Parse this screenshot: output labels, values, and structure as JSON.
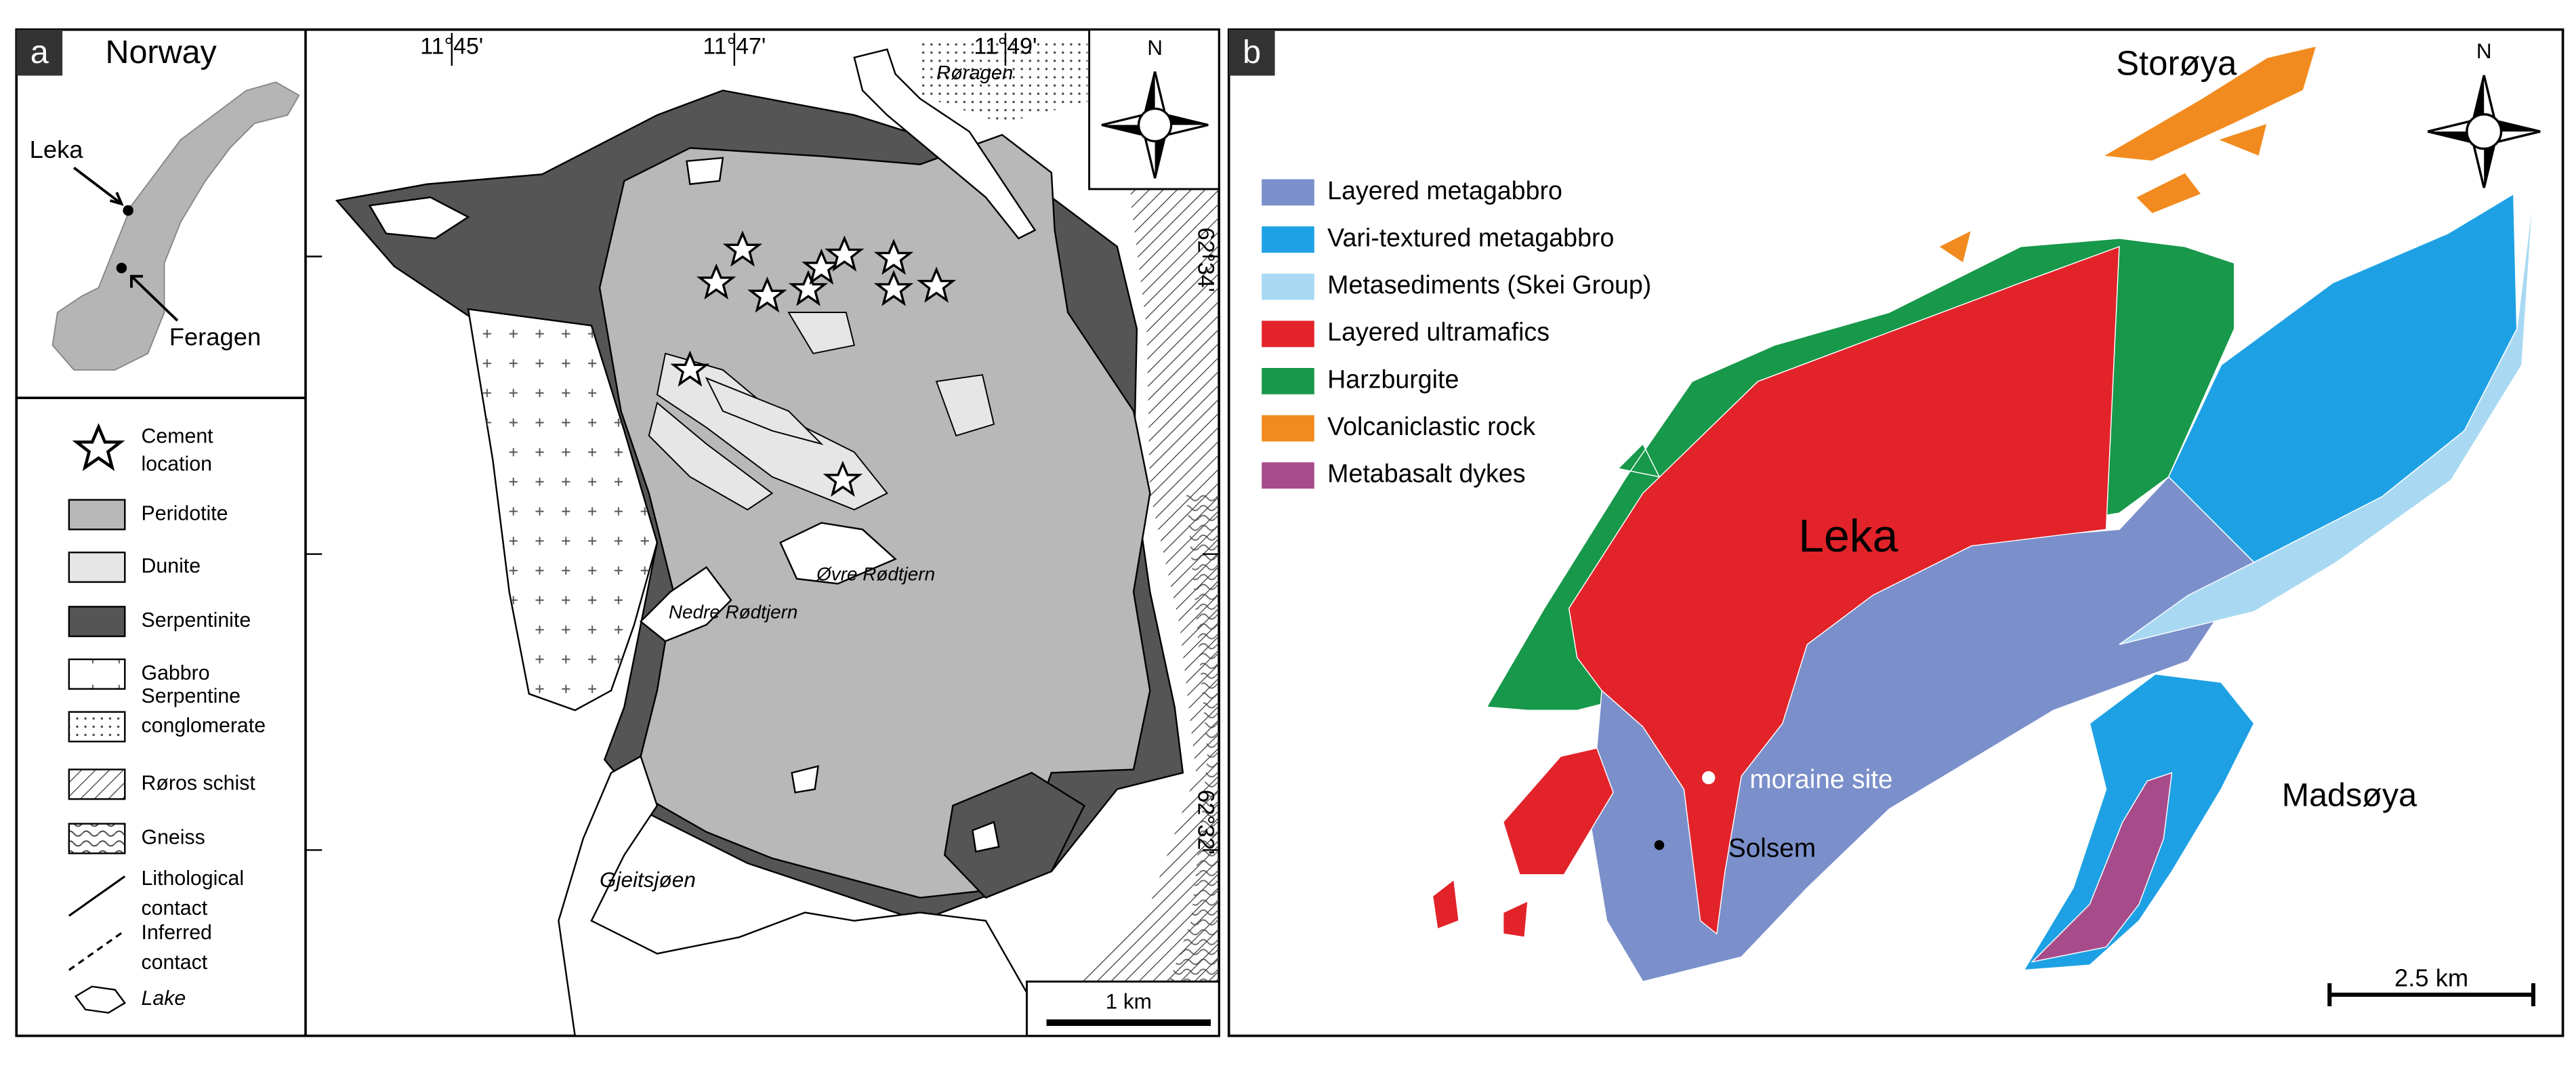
{
  "panel_a": {
    "label": "a",
    "inset": {
      "title": "Norway",
      "places": [
        "Leka",
        "Feragen"
      ]
    },
    "longitudes": [
      "11°45'",
      "11°47'",
      "11°49'"
    ],
    "latitudes": [
      "62°34'",
      "62°32'"
    ],
    "place_names": [
      "Røragen",
      "Øvre Rødtjern",
      "Nedre Rødtjern",
      "Gjeitsjøen"
    ],
    "north": "N",
    "legend": [
      [
        "Cement",
        "location"
      ],
      [
        "Peridotite"
      ],
      [
        "Dunite"
      ],
      [
        "Serpentinite"
      ],
      [
        "Gabbro"
      ],
      [
        "Serpentine",
        "conglomerate"
      ],
      [
        "Røros schist"
      ],
      [
        "Gneiss"
      ],
      [
        "Lithological",
        "contact"
      ],
      [
        "Inferred",
        "contact"
      ],
      [
        "Lake"
      ]
    ],
    "scale_bar": "1 km"
  },
  "panel_b": {
    "label": "b",
    "north": "N",
    "legend": [
      {
        "label": "Layered metagabbro",
        "color": "#7b8fca"
      },
      {
        "label": "Vari-textured metagabbro",
        "color": "#1ea1e4"
      },
      {
        "label": "Metasediments (Skei Group)",
        "color": "#a9d9f2"
      },
      {
        "label": "Layered ultramafics",
        "color": "#e2232a"
      },
      {
        "label": "Harzburgite",
        "color": "#17984a"
      },
      {
        "label": "Volcaniclastic rock",
        "color": "#f28b1f"
      },
      {
        "label": "Metabasalt dykes",
        "color": "#a74b8b"
      }
    ],
    "place_names": [
      "Storøya",
      "Leka",
      "Madsøya",
      "moraine site",
      "Solsem"
    ],
    "scale_bar": "2.5 km"
  }
}
